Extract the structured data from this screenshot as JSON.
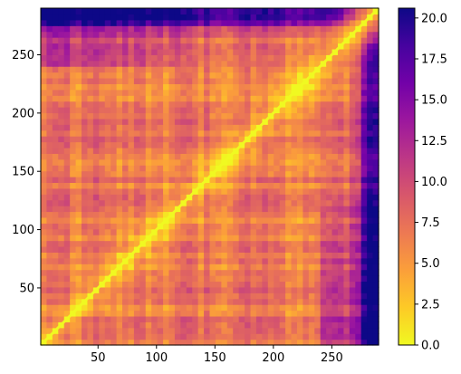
{
  "chart_data": {
    "type": "heatmap",
    "title": "",
    "xlabel": "",
    "ylabel": "",
    "matrix_size": 290,
    "xlim": [
      1,
      290
    ],
    "ylim": [
      1,
      290
    ],
    "x_ticks": [
      50,
      100,
      150,
      200,
      250
    ],
    "y_ticks": [
      50,
      100,
      150,
      200,
      250
    ],
    "colorbar": {
      "colormap": "plasma (reversed)",
      "min": 0.0,
      "max": 20.6,
      "ticks": [
        "0.0",
        "2.5",
        "5.0",
        "7.5",
        "10.0",
        "12.5",
        "15.0",
        "17.5",
        "20.0"
      ],
      "tick_values": [
        0.0,
        2.5,
        5.0,
        7.5,
        10.0,
        12.5,
        15.0,
        17.5,
        20.0
      ]
    },
    "description_of_values": "symmetric distance-like matrix; 0 on the diagonal, values grow away from diagonal; highest (~17-20) near the top-left and right edge bands",
    "color_stops": [
      "#f0f921",
      "#fdca26",
      "#fb9f3a",
      "#ed7953",
      "#d8576b",
      "#bd3786",
      "#9c179e",
      "#7201a8",
      "#46039f",
      "#0d0887"
    ]
  }
}
